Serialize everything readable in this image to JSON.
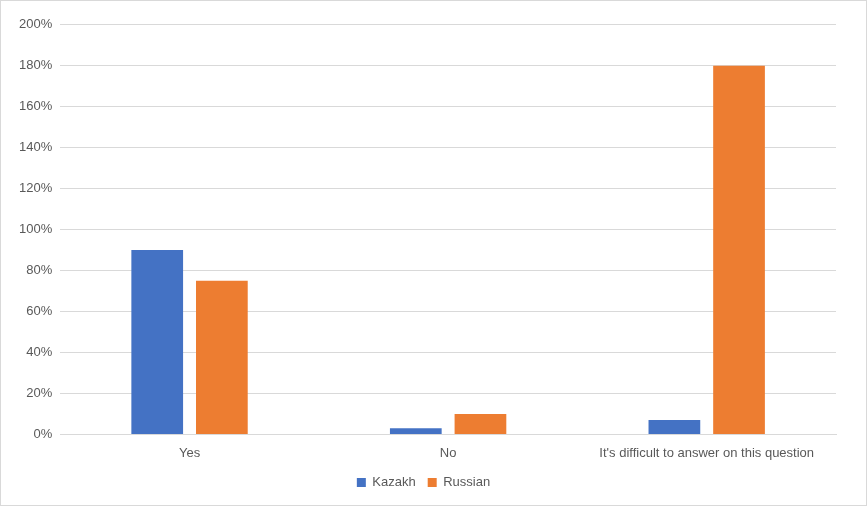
{
  "chart_data": {
    "type": "bar",
    "categories": [
      "Yes",
      "No",
      "It's difficult to answer on this question"
    ],
    "series": [
      {
        "name": "Kazakh",
        "color": "#4472c4",
        "values": [
          90,
          3,
          7
        ]
      },
      {
        "name": "Russian",
        "color": "#ed7d31",
        "values": [
          75,
          10,
          180
        ]
      }
    ],
    "ylim": [
      0,
      200
    ],
    "yticks": [
      {
        "value": 0,
        "label": "0%"
      },
      {
        "value": 20,
        "label": "20%"
      },
      {
        "value": 40,
        "label": "40%"
      },
      {
        "value": 60,
        "label": "60%"
      },
      {
        "value": 80,
        "label": "80%"
      },
      {
        "value": 100,
        "label": "100%"
      },
      {
        "value": 120,
        "label": "120%"
      },
      {
        "value": 140,
        "label": "140%"
      },
      {
        "value": 160,
        "label": "160%"
      },
      {
        "value": 180,
        "label": "180%"
      },
      {
        "value": 200,
        "label": "200%"
      }
    ],
    "grid": true,
    "legend": "bottom"
  }
}
